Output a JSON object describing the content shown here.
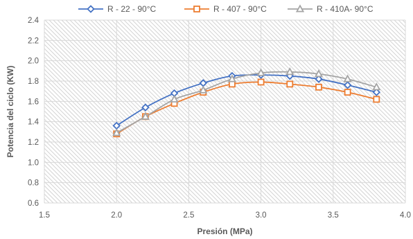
{
  "chart_data": {
    "type": "line",
    "xlabel": "Presión (MPa)",
    "ylabel": "Potencia del ciclo  (KW)",
    "xlim": [
      1.5,
      4.0
    ],
    "ylim": [
      0.6,
      2.4
    ],
    "xticks": [
      "1.5",
      "2.0",
      "2.5",
      "3.0",
      "3.5",
      "4.0"
    ],
    "yticks": [
      "0.6",
      "0.8",
      "1.0",
      "1.2",
      "1.4",
      "1.6",
      "1.8",
      "2.0",
      "2.2",
      "2.4"
    ],
    "legend_position": "top",
    "grid": true,
    "series": [
      {
        "name": "R - 22 - 90°C",
        "color": "#4472C4",
        "marker": "diamond",
        "x": [
          2.0,
          2.2,
          2.4,
          2.6,
          2.8,
          3.0,
          3.2,
          3.4,
          3.6,
          3.8
        ],
        "y": [
          1.36,
          1.54,
          1.68,
          1.78,
          1.85,
          1.86,
          1.85,
          1.82,
          1.76,
          1.69
        ]
      },
      {
        "name": "R - 407 - 90°C",
        "color": "#ED7D31",
        "marker": "square",
        "x": [
          2.0,
          2.2,
          2.4,
          2.6,
          2.8,
          3.0,
          3.2,
          3.4,
          3.6,
          3.8
        ],
        "y": [
          1.28,
          1.45,
          1.58,
          1.69,
          1.77,
          1.79,
          1.77,
          1.74,
          1.69,
          1.62
        ]
      },
      {
        "name": "R - 410A- 90°C",
        "color": "#A5A5A5",
        "marker": "triangle",
        "x": [
          2.0,
          2.2,
          2.4,
          2.6,
          2.8,
          3.0,
          3.2,
          3.4,
          3.6,
          3.8
        ],
        "y": [
          1.29,
          1.45,
          1.62,
          1.71,
          1.82,
          1.88,
          1.89,
          1.87,
          1.82,
          1.74
        ]
      }
    ]
  }
}
